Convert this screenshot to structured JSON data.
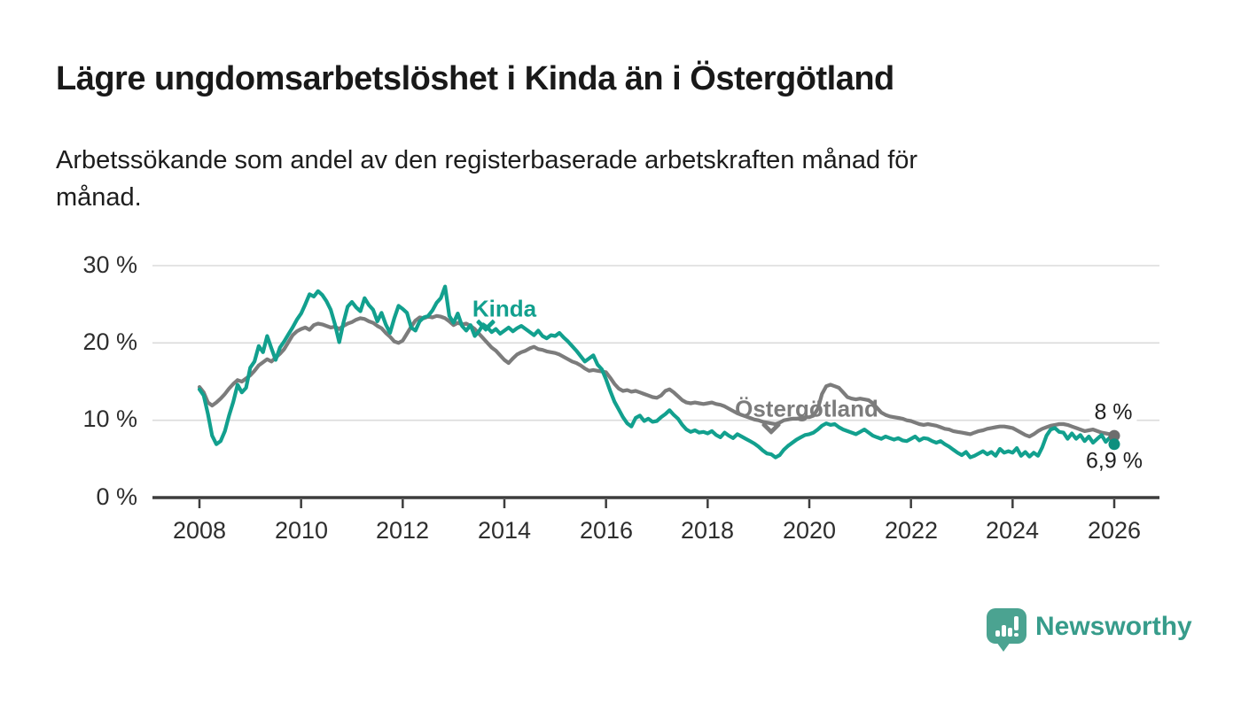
{
  "title": "Lägre ungdomsarbetslöshet i Kinda än i Östergötland",
  "subtitle_line1": "Arbetssökande som andel av den registerbaserade arbetskraften månad för",
  "subtitle_line2": "månad.",
  "footer": {
    "brand": "Newsworthy",
    "logo_icon": "speech-bubble-bar-chart-icon",
    "brand_text_color": "#379c8b",
    "logo_color": "#4ba391"
  },
  "colors": {
    "background": "#ffffff",
    "title_text": "#191919",
    "axis_text": "#2e2e2e",
    "gridline": "#dbdbdb",
    "axis_line": "#3d3d3d"
  },
  "chart_data": {
    "type": "line",
    "unit": "%",
    "x_start_year": 2008,
    "x_end_year": 2026,
    "points_per_month": 1,
    "ylim": [
      0,
      30
    ],
    "grid": true,
    "x_ticks": [
      2008,
      2010,
      2012,
      2014,
      2016,
      2018,
      2020,
      2022,
      2024,
      2026
    ],
    "x_tick_labels": [
      "2008",
      "2010",
      "2012",
      "2014",
      "2016",
      "2018",
      "2020",
      "2022",
      "2024",
      "2026"
    ],
    "y_ticks": [
      {
        "value": 30,
        "label": "30 %"
      },
      {
        "value": 20,
        "label": "20 %"
      },
      {
        "value": 10,
        "label": "10 %"
      },
      {
        "value": 0,
        "label": "0 %"
      }
    ],
    "series": [
      {
        "name": "Östergötland",
        "color": "#7c7c7c",
        "dot_color": "#6d6d6d",
        "end_label": "8 %",
        "end_value": 8.0,
        "values": [
          14.3,
          13.6,
          12.3,
          11.9,
          12.3,
          12.8,
          13.4,
          14.1,
          14.7,
          15.2,
          15.0,
          15.4,
          15.8,
          16.4,
          17.1,
          17.5,
          17.9,
          17.6,
          18.1,
          18.6,
          19.2,
          20.1,
          21.0,
          21.5,
          21.8,
          22.0,
          21.7,
          22.3,
          22.5,
          22.4,
          22.2,
          22.0,
          22.1,
          21.8,
          22.2,
          22.5,
          22.7,
          23.0,
          23.2,
          23.1,
          22.8,
          22.6,
          22.2,
          21.9,
          21.3,
          20.8,
          20.2,
          20.0,
          20.3,
          21.2,
          22.1,
          22.9,
          23.3,
          23.2,
          23.4,
          23.3,
          23.5,
          23.4,
          23.2,
          22.8,
          22.3,
          22.6,
          22.4,
          22.5,
          22.2,
          21.8,
          21.2,
          20.6,
          20.0,
          19.4,
          19.0,
          18.4,
          17.8,
          17.4,
          18.0,
          18.5,
          18.8,
          19.0,
          19.3,
          19.5,
          19.2,
          19.1,
          18.9,
          18.8,
          18.7,
          18.5,
          18.2,
          17.9,
          17.6,
          17.4,
          17.1,
          16.7,
          16.4,
          16.5,
          16.4,
          16.3,
          16.2,
          15.5,
          14.7,
          14.1,
          13.8,
          13.9,
          13.7,
          13.8,
          13.6,
          13.4,
          13.2,
          13.0,
          12.9,
          13.2,
          13.8,
          14.0,
          13.6,
          13.1,
          12.6,
          12.3,
          12.2,
          12.3,
          12.2,
          12.1,
          12.2,
          12.3,
          12.1,
          12.0,
          11.8,
          11.5,
          11.2,
          10.9,
          10.7,
          10.5,
          10.3,
          10.1,
          10.0,
          9.8,
          9.7,
          9.6,
          9.5,
          9.7,
          10.0,
          10.1,
          10.2,
          10.2,
          10.3,
          10.4,
          10.4,
          10.6,
          11.5,
          13.4,
          14.4,
          14.6,
          14.4,
          14.2,
          13.6,
          13.0,
          12.8,
          12.7,
          12.8,
          12.7,
          12.6,
          12.2,
          11.6,
          11.0,
          10.7,
          10.5,
          10.4,
          10.3,
          10.2,
          10.0,
          9.9,
          9.7,
          9.5,
          9.4,
          9.5,
          9.4,
          9.3,
          9.1,
          8.9,
          8.8,
          8.6,
          8.5,
          8.4,
          8.3,
          8.2,
          8.4,
          8.6,
          8.7,
          8.9,
          9.0,
          9.1,
          9.2,
          9.2,
          9.1,
          9.0,
          8.7,
          8.4,
          8.1,
          7.9,
          8.2,
          8.6,
          8.9,
          9.1,
          9.3,
          9.4,
          9.5,
          9.5,
          9.4,
          9.2,
          9.0,
          8.8,
          8.6,
          8.7,
          8.8,
          8.6,
          8.4,
          8.3,
          8.2,
          8.0
        ]
      },
      {
        "name": "Kinda",
        "color": "#12a08e",
        "dot_color": "#0d8f7e",
        "end_label": "6,9 %",
        "end_value": 6.9,
        "values": [
          14.0,
          13.2,
          10.8,
          8.0,
          6.9,
          7.3,
          8.6,
          10.6,
          12.4,
          14.6,
          13.6,
          14.2,
          16.8,
          17.6,
          19.6,
          18.8,
          20.9,
          19.3,
          17.8,
          19.4,
          20.2,
          21.1,
          22.0,
          23.0,
          23.8,
          25.0,
          26.3,
          26.0,
          26.7,
          26.2,
          25.4,
          24.3,
          22.4,
          20.1,
          22.6,
          24.7,
          25.3,
          24.6,
          24.1,
          25.8,
          24.9,
          24.3,
          22.8,
          23.9,
          22.4,
          21.3,
          23.2,
          24.8,
          24.4,
          23.9,
          22.0,
          21.6,
          22.8,
          23.3,
          23.5,
          24.2,
          25.2,
          25.8,
          27.3,
          23.5,
          22.6,
          23.8,
          22.2,
          21.6,
          22.3,
          20.9,
          21.5,
          22.4,
          22.0,
          21.4,
          21.8,
          21.2,
          21.6,
          22.0,
          21.5,
          21.9,
          22.2,
          21.8,
          21.4,
          21.0,
          21.6,
          20.9,
          20.6,
          21.0,
          20.9,
          21.3,
          20.7,
          20.2,
          19.6,
          19.0,
          18.3,
          17.6,
          18.0,
          18.4,
          17.2,
          16.6,
          15.3,
          13.8,
          12.4,
          11.4,
          10.4,
          9.6,
          9.2,
          10.3,
          10.6,
          9.9,
          10.2,
          9.8,
          9.9,
          10.4,
          10.8,
          11.3,
          10.7,
          10.2,
          9.4,
          8.8,
          8.5,
          8.7,
          8.4,
          8.5,
          8.3,
          8.6,
          8.1,
          7.8,
          8.4,
          8.0,
          7.7,
          8.2,
          7.9,
          7.6,
          7.3,
          7.0,
          6.6,
          6.1,
          5.7,
          5.6,
          5.2,
          5.5,
          6.2,
          6.7,
          7.1,
          7.5,
          7.8,
          8.1,
          8.2,
          8.4,
          8.8,
          9.3,
          9.6,
          9.4,
          9.5,
          9.1,
          8.8,
          8.6,
          8.4,
          8.2,
          8.5,
          8.8,
          8.4,
          8.0,
          7.8,
          7.6,
          7.9,
          7.7,
          7.5,
          7.7,
          7.4,
          7.3,
          7.6,
          7.9,
          7.4,
          7.7,
          7.6,
          7.3,
          7.1,
          7.3,
          6.9,
          6.6,
          6.2,
          5.8,
          5.5,
          5.9,
          5.2,
          5.4,
          5.7,
          6.0,
          5.6,
          5.9,
          5.4,
          6.3,
          5.8,
          6.0,
          5.8,
          6.4,
          5.4,
          5.9,
          5.3,
          5.8,
          5.4,
          6.5,
          8.0,
          8.8,
          9.0,
          8.5,
          8.4,
          7.6,
          8.3,
          7.6,
          8.1,
          7.3,
          7.9,
          7.1,
          7.6,
          8.1,
          7.2,
          7.8,
          6.9
        ]
      }
    ]
  }
}
